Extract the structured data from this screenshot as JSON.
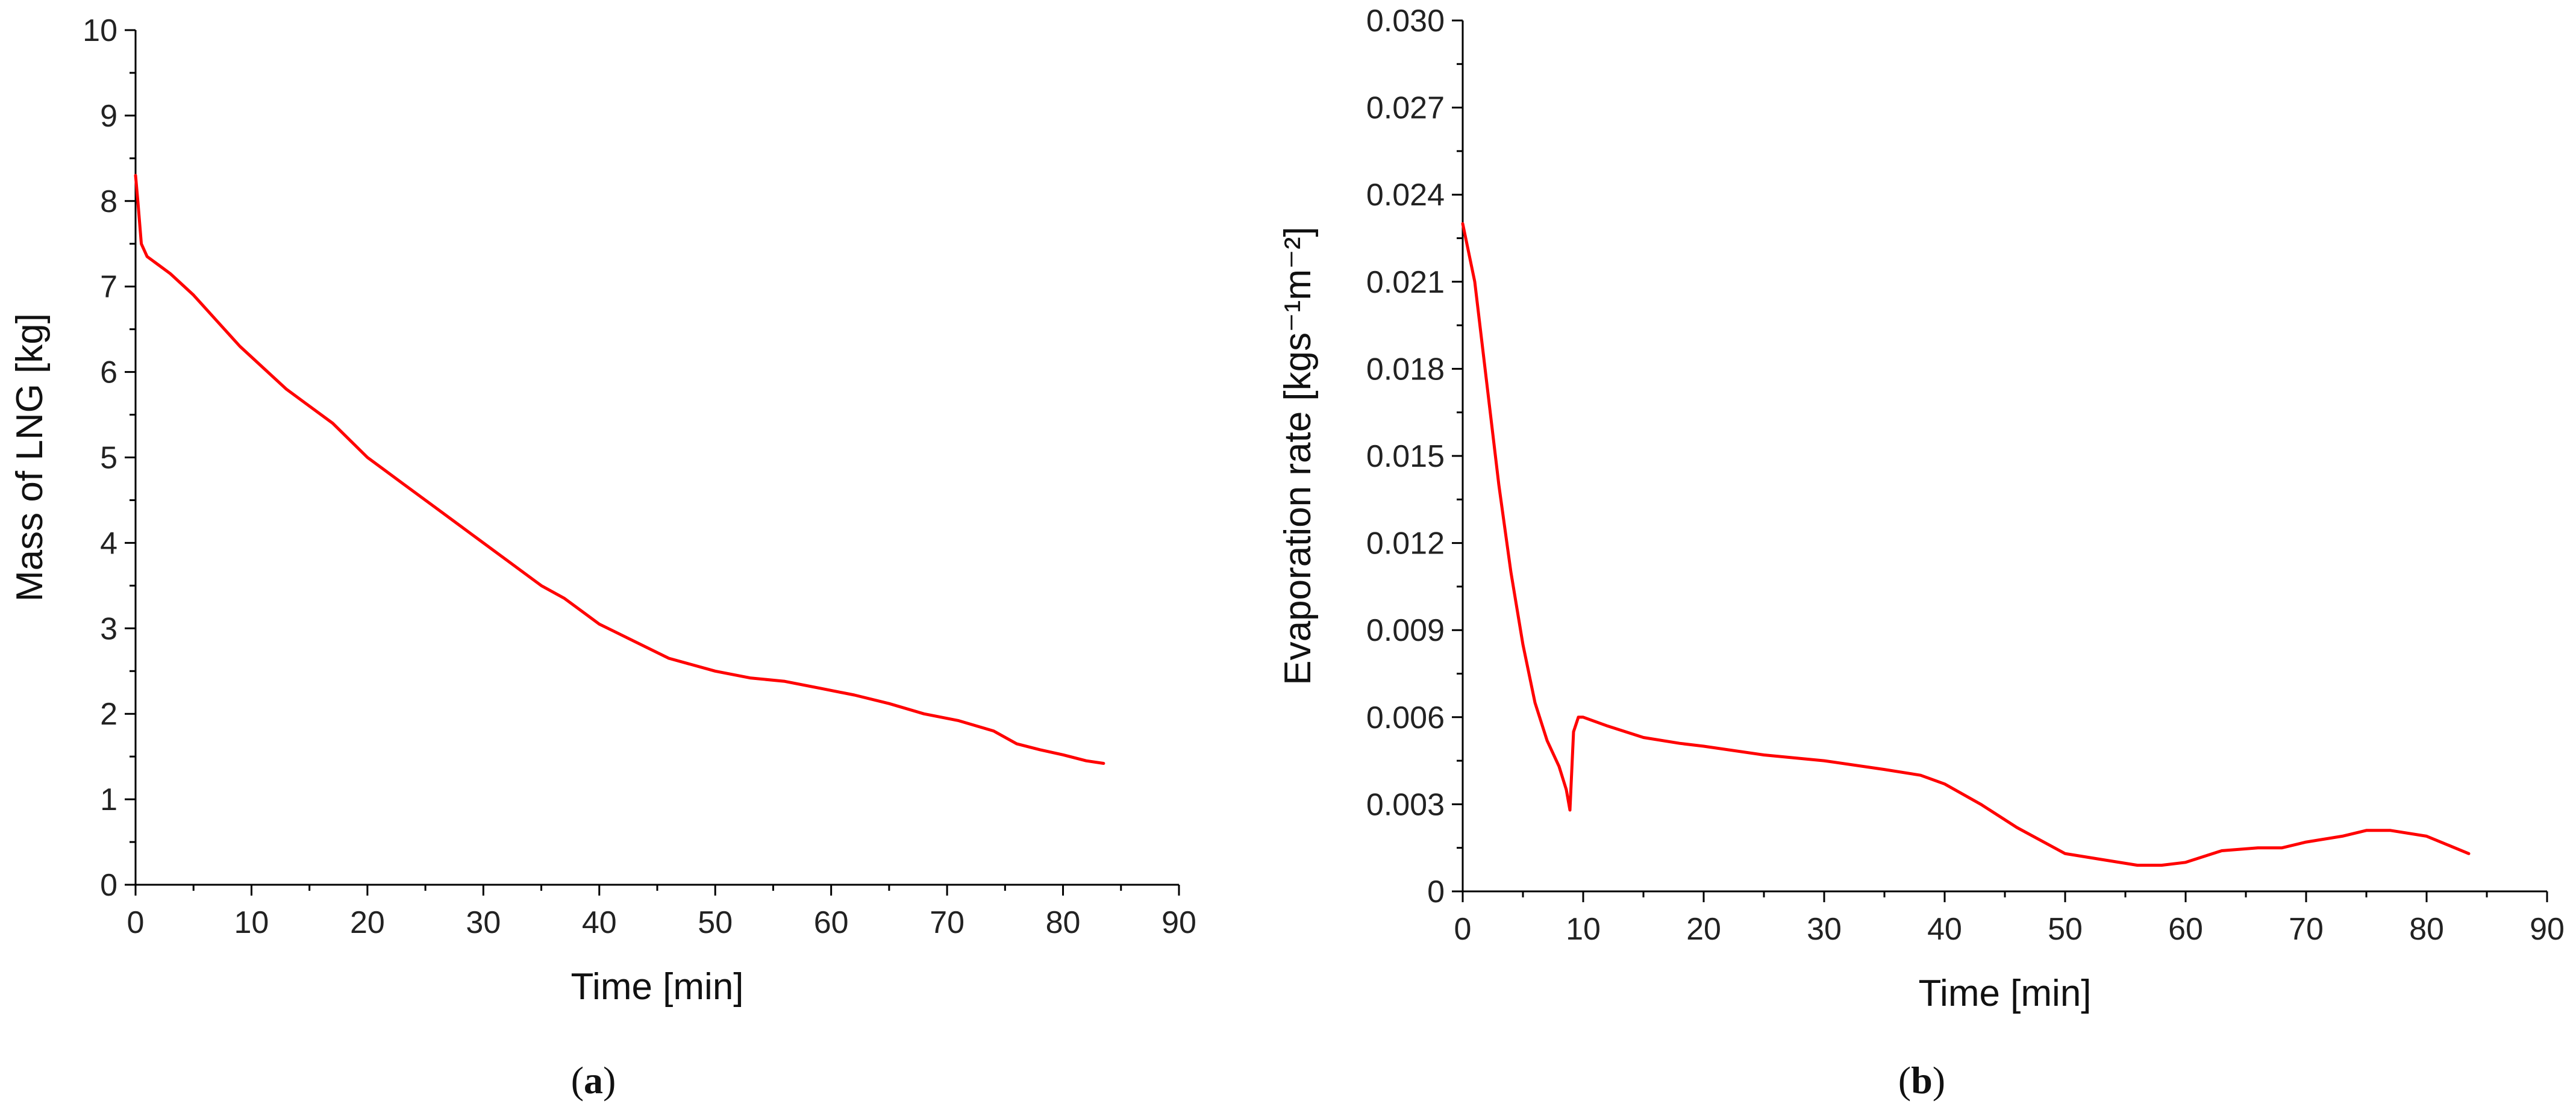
{
  "chart_data": [
    {
      "type": "line",
      "panel_label": "a",
      "xlabel": "Time [min]",
      "ylabel": "Mass of LNG [kg]",
      "xlim": [
        0,
        90
      ],
      "ylim": [
        0,
        10
      ],
      "xticks": [
        "0",
        "10",
        "20",
        "30",
        "40",
        "50",
        "60",
        "70",
        "80",
        "90"
      ],
      "yticks": [
        "0",
        "1",
        "2",
        "3",
        "4",
        "5",
        "6",
        "7",
        "8",
        "9",
        "10"
      ],
      "grid": false,
      "color": "#ff0000",
      "series": [
        {
          "x": [
            0,
            0.2,
            0.5,
            1,
            2,
            3,
            5,
            7,
            9,
            11,
            13,
            15,
            17,
            20,
            23,
            26,
            29,
            32,
            35,
            37,
            40,
            43,
            46,
            50,
            53,
            56,
            59,
            62,
            65,
            68,
            71,
            74,
            76,
            78,
            80,
            82,
            83.5
          ],
          "y": [
            8.3,
            8.0,
            7.5,
            7.35,
            7.25,
            7.15,
            6.9,
            6.6,
            6.3,
            6.05,
            5.8,
            5.6,
            5.4,
            5.0,
            4.7,
            4.4,
            4.1,
            3.8,
            3.5,
            3.35,
            3.05,
            2.85,
            2.65,
            2.5,
            2.42,
            2.38,
            2.3,
            2.22,
            2.12,
            2.0,
            1.92,
            1.8,
            1.65,
            1.58,
            1.52,
            1.45,
            1.42
          ]
        }
      ]
    },
    {
      "type": "line",
      "panel_label": "b",
      "xlabel": "Time [min]",
      "ylabel": "Evaporation rate [kgs⁻¹m⁻²]",
      "xlim": [
        0,
        90
      ],
      "ylim": [
        0,
        0.03
      ],
      "xticks": [
        "0",
        "10",
        "20",
        "30",
        "40",
        "50",
        "60",
        "70",
        "80",
        "90"
      ],
      "yticks": [
        "0",
        "0.003",
        "0.006",
        "0.009",
        "0.012",
        "0.015",
        "0.018",
        "0.021",
        "0.024",
        "0.027",
        "0.030"
      ],
      "grid": false,
      "color": "#ff0000",
      "series": [
        {
          "x": [
            0,
            1,
            2,
            3,
            4,
            5,
            6,
            7,
            8,
            8.6,
            8.9,
            9.2,
            9.6,
            10,
            12,
            15,
            18,
            20,
            25,
            30,
            35,
            38,
            40,
            43,
            46,
            50,
            53,
            56,
            58,
            60,
            63,
            66,
            68,
            70,
            73,
            75,
            77,
            80,
            83.5
          ],
          "y": [
            0.023,
            0.021,
            0.0175,
            0.014,
            0.011,
            0.0085,
            0.0065,
            0.0052,
            0.0043,
            0.0035,
            0.0028,
            0.0055,
            0.006,
            0.006,
            0.0057,
            0.0053,
            0.0051,
            0.005,
            0.0047,
            0.0045,
            0.0042,
            0.004,
            0.0037,
            0.003,
            0.0022,
            0.0013,
            0.0011,
            0.0009,
            0.0009,
            0.001,
            0.0014,
            0.0015,
            0.0015,
            0.0017,
            0.0019,
            0.0021,
            0.0021,
            0.0019,
            0.0013
          ]
        }
      ]
    }
  ]
}
